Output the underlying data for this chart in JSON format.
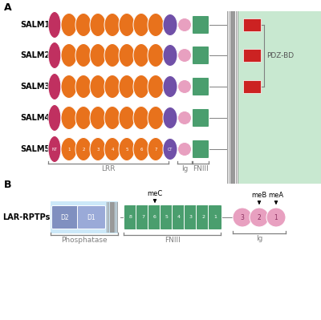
{
  "background": "#ffffff",
  "panel_A_label": "A",
  "panel_B_label": "B",
  "salm_labels": [
    "SALM1",
    "SALM2",
    "SALM3",
    "SALM4",
    "SALM5"
  ],
  "nt_color": "#c03060",
  "lrr_color": "#e8721c",
  "ct_color": "#7050a8",
  "ig_color": "#e8a0c0",
  "fniii_color": "#4a9e6e",
  "pdz_color": "#cc2222",
  "membrane_color": "#aaaaaa",
  "green_bg_color": "#c8e8d0",
  "pdz_bd_text": "PDZ-BD",
  "lrr_label": "LRR",
  "ig_label": "Ig",
  "fniii_label": "FNIII",
  "lar_label": "LAR-RPTPs",
  "phosphatase_label": "Phosphatase",
  "fniii_label_b": "FNIII",
  "ig_label_b": "Ig",
  "mec_label": "meC",
  "meb_label": "meB",
  "mea_label": "meA",
  "d1_color": "#9aaad8",
  "d2_color": "#8090c0",
  "fniii_b_color": "#4a9e6e",
  "ig_b_color": "#e8a0c0",
  "phos_bg_color": "#cce8f8"
}
